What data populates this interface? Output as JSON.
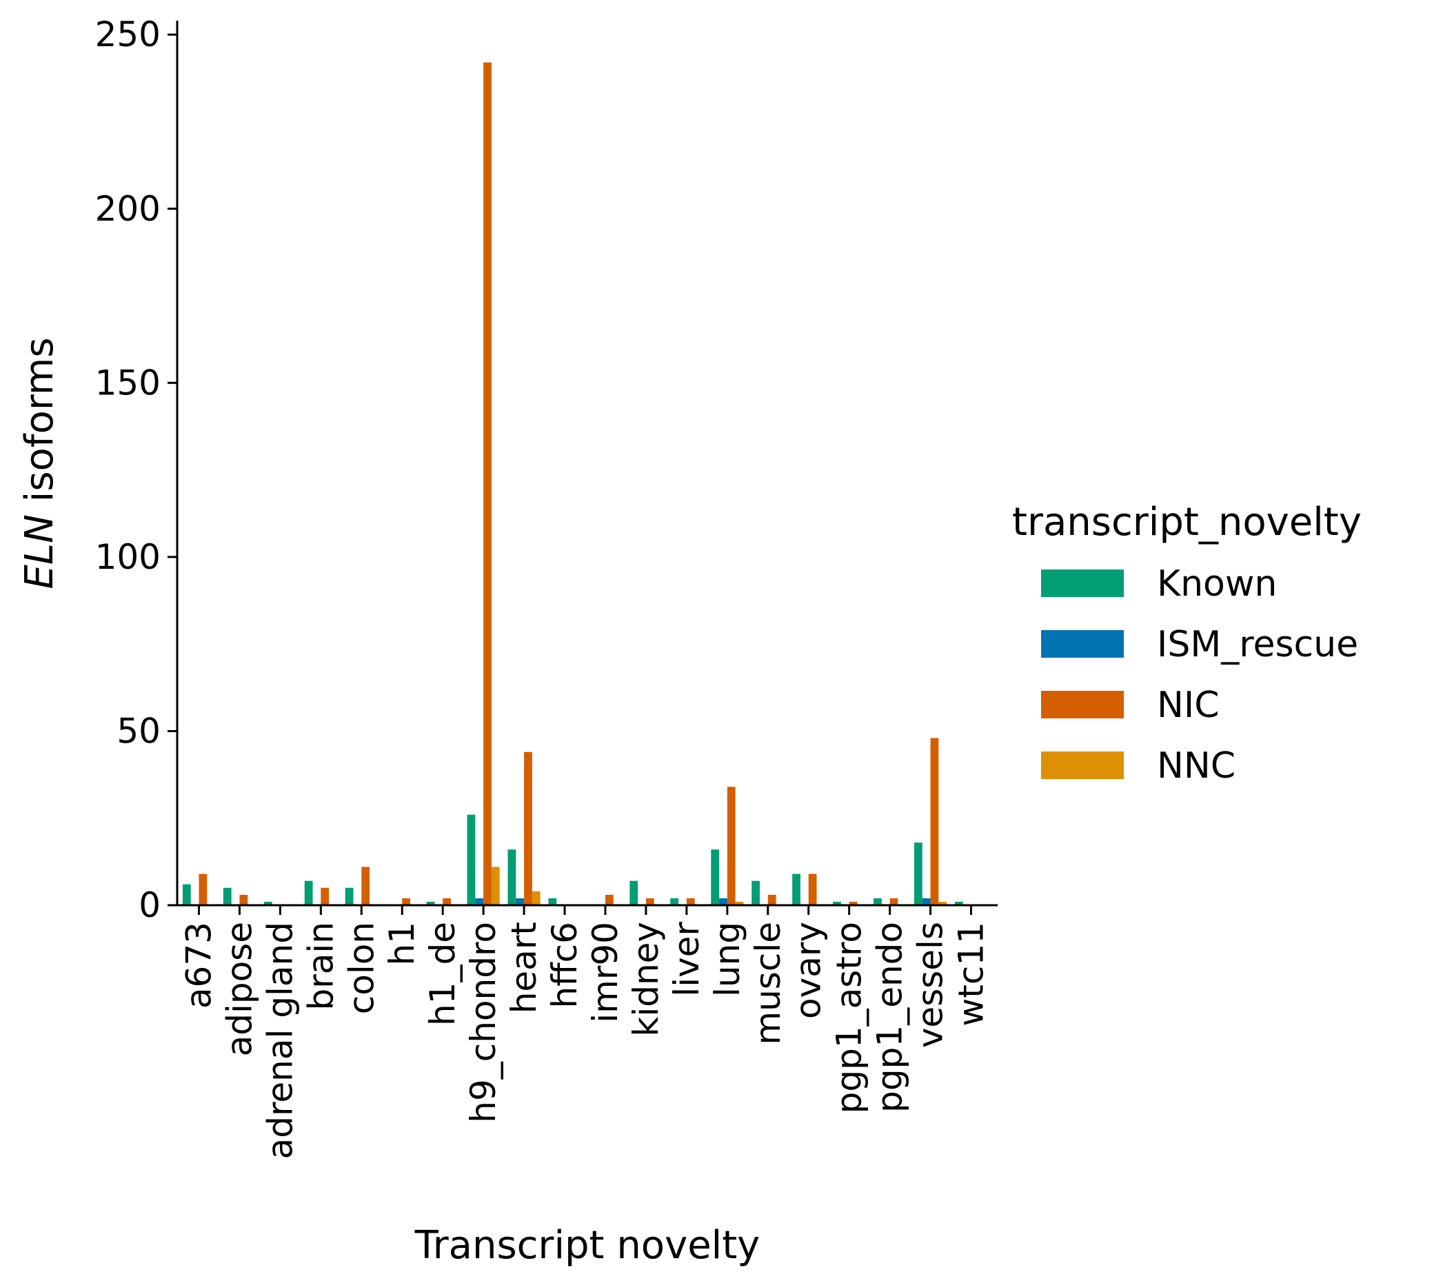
{
  "chart_data": {
    "type": "bar",
    "title": "",
    "xlabel": "Transcript novelty",
    "ylabel_italic": "ELN",
    "ylabel_rest": " isoforms",
    "ylim": [
      0,
      254
    ],
    "yticks": [
      0,
      50,
      100,
      150,
      200,
      250
    ],
    "grid": false,
    "legend_position": "right",
    "legend_title": "transcript_novelty",
    "categories": [
      "a673",
      "adipose",
      "adrenal gland",
      "brain",
      "colon",
      "h1",
      "h1_de",
      "h9_chondro",
      "heart",
      "hffc6",
      "imr90",
      "kidney",
      "liver",
      "lung",
      "muscle",
      "ovary",
      "pgp1_astro",
      "pgp1_endo",
      "vessels",
      "wtc11"
    ],
    "series": [
      {
        "name": "Known",
        "color": "#029e73",
        "values": [
          6,
          5,
          1,
          7,
          5,
          0,
          1,
          26,
          16,
          2,
          0,
          7,
          2,
          16,
          7,
          9,
          1,
          2,
          18,
          1
        ]
      },
      {
        "name": "ISM_rescue",
        "color": "#0173b2",
        "values": [
          0,
          0,
          0,
          0,
          0,
          0,
          0,
          2,
          2,
          0,
          0,
          0,
          0,
          2,
          0,
          0,
          0,
          0,
          2,
          0
        ]
      },
      {
        "name": "NIC",
        "color": "#d55e00",
        "values": [
          9,
          3,
          0,
          5,
          11,
          2,
          2,
          242,
          44,
          0,
          3,
          2,
          2,
          34,
          3,
          9,
          1,
          2,
          48,
          0
        ]
      },
      {
        "name": "NNC",
        "color": "#de8f05",
        "values": [
          0,
          0,
          0,
          0,
          0,
          0,
          0,
          11,
          4,
          0,
          0,
          0,
          0,
          1,
          0,
          0,
          0,
          0,
          1,
          0
        ]
      }
    ]
  }
}
